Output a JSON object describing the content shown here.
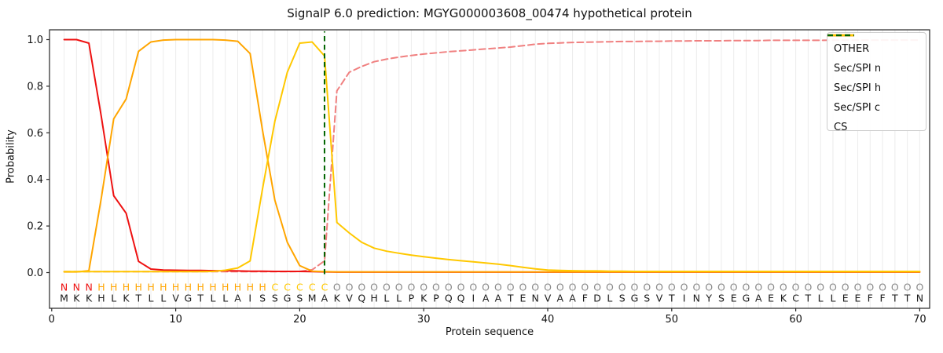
{
  "title": "SignalP 6.0 prediction: MGYG000003608_00474 hypothetical protein",
  "axes": {
    "x_label": "Protein sequence",
    "y_label": "Probability",
    "x_ticks": [
      0,
      10,
      20,
      30,
      40,
      50,
      60,
      70
    ],
    "y_ticks": [
      "0.0",
      "0.2",
      "0.4",
      "0.6",
      "0.8",
      "1.0"
    ]
  },
  "legend": {
    "items": [
      {
        "label": "OTHER",
        "color": "#f08080",
        "dash": true
      },
      {
        "label": "Sec/SPI n",
        "color": "#ee1111",
        "dash": false
      },
      {
        "label": "Sec/SPI h",
        "color": "#ffa500",
        "dash": false
      },
      {
        "label": "Sec/SPI c",
        "color": "#ffc800",
        "dash": false
      },
      {
        "label": "CS",
        "color": "#006400",
        "dash": true
      }
    ]
  },
  "chart_data": {
    "type": "line",
    "title": "SignalP 6.0 prediction: MGYG000003608_00474 hypothetical protein",
    "xlabel": "Protein sequence",
    "ylabel": "Probability",
    "xlim": [
      -0.2,
      70.8
    ],
    "ylim": [
      -0.15,
      1.04
    ],
    "grid": "vertical-per-residue",
    "legend_position": "upper right",
    "x_start": 1,
    "sequence": "MKKHLKTLLVGTLLAISSGSMAKVQHLLPKPQQIAATENVAAFDLSGSVTINYSEGAEKCTLLEEFFTTN",
    "region_labels": "NNNHHHHHHHHHHHHHHCCCCCOOOOOOOOOOOOOOOOOOOOOOOOOOOOOOOOOOOOOOOOOOOOOOOO",
    "region_colors": {
      "N": "#ee1111",
      "H": "#ffa500",
      "C": "#ffc800",
      "O": "#8a8a8a"
    },
    "sequence_color": "#1a1a1a",
    "cs_line": {
      "name": "CS",
      "x": 22,
      "color": "#006400",
      "style": "dashed"
    },
    "series": [
      {
        "name": "OTHER",
        "color": "#f08080",
        "style": "dashed",
        "values": [
          0.004,
          0.004,
          0.004,
          0.004,
          0.004,
          0.004,
          0.004,
          0.004,
          0.004,
          0.004,
          0.004,
          0.004,
          0.004,
          0.004,
          0.004,
          0.004,
          0.004,
          0.004,
          0.004,
          0.005,
          0.012,
          0.05,
          0.78,
          0.86,
          0.885,
          0.905,
          0.916,
          0.925,
          0.932,
          0.938,
          0.943,
          0.948,
          0.952,
          0.956,
          0.96,
          0.964,
          0.968,
          0.974,
          0.98,
          0.984,
          0.986,
          0.988,
          0.989,
          0.99,
          0.991,
          0.992,
          0.992,
          0.993,
          0.993,
          0.994,
          0.994,
          0.995,
          0.995,
          0.995,
          0.996,
          0.996,
          0.996,
          0.997,
          0.997,
          0.997,
          0.997,
          0.997,
          0.998,
          0.998,
          0.998,
          0.998,
          0.998,
          0.998,
          0.998,
          0.998
        ]
      },
      {
        "name": "Sec/SPI n",
        "color": "#ee1111",
        "style": "solid",
        "values": [
          1.0,
          1.0,
          0.985,
          0.67,
          0.33,
          0.255,
          0.048,
          0.015,
          0.011,
          0.01,
          0.009,
          0.009,
          0.008,
          0.008,
          0.007,
          0.006,
          0.006,
          0.005,
          0.005,
          0.005,
          0.004,
          0.003,
          0.002,
          0.002,
          0.002,
          0.002,
          0.002,
          0.002,
          0.002,
          0.002,
          0.002,
          0.002,
          0.002,
          0.002,
          0.002,
          0.002,
          0.002,
          0.002,
          0.002,
          0.002,
          0.002,
          0.002,
          0.002,
          0.002,
          0.002,
          0.002,
          0.002,
          0.002,
          0.002,
          0.002,
          0.002,
          0.002,
          0.002,
          0.002,
          0.002,
          0.002,
          0.002,
          0.002,
          0.002,
          0.002,
          0.002,
          0.002,
          0.002,
          0.002,
          0.002,
          0.002,
          0.002,
          0.002,
          0.002,
          0.002
        ]
      },
      {
        "name": "Sec/SPI h",
        "color": "#ffa500",
        "style": "solid",
        "values": [
          0.003,
          0.003,
          0.008,
          0.32,
          0.66,
          0.745,
          0.95,
          0.99,
          0.998,
          1.0,
          1.0,
          1.0,
          1.0,
          0.998,
          0.993,
          0.94,
          0.61,
          0.31,
          0.13,
          0.03,
          0.006,
          0.004,
          0.003,
          0.003,
          0.003,
          0.003,
          0.003,
          0.003,
          0.003,
          0.003,
          0.003,
          0.003,
          0.003,
          0.003,
          0.003,
          0.003,
          0.003,
          0.003,
          0.003,
          0.003,
          0.003,
          0.003,
          0.003,
          0.003,
          0.003,
          0.003,
          0.003,
          0.003,
          0.003,
          0.003,
          0.003,
          0.003,
          0.003,
          0.003,
          0.003,
          0.003,
          0.003,
          0.003,
          0.003,
          0.003,
          0.003,
          0.003,
          0.003,
          0.003,
          0.003,
          0.003,
          0.003,
          0.003,
          0.003,
          0.003
        ]
      },
      {
        "name": "Sec/SPI c",
        "color": "#ffc800",
        "style": "solid",
        "values": [
          0.004,
          0.004,
          0.004,
          0.004,
          0.004,
          0.004,
          0.004,
          0.004,
          0.004,
          0.004,
          0.004,
          0.004,
          0.005,
          0.01,
          0.02,
          0.05,
          0.36,
          0.65,
          0.86,
          0.985,
          0.99,
          0.93,
          0.215,
          0.17,
          0.13,
          0.105,
          0.092,
          0.083,
          0.075,
          0.068,
          0.062,
          0.056,
          0.051,
          0.046,
          0.041,
          0.036,
          0.03,
          0.023,
          0.016,
          0.011,
          0.009,
          0.008,
          0.007,
          0.007,
          0.006,
          0.006,
          0.005,
          0.005,
          0.005,
          0.005,
          0.005,
          0.005,
          0.005,
          0.005,
          0.005,
          0.005,
          0.005,
          0.005,
          0.005,
          0.005,
          0.005,
          0.005,
          0.005,
          0.005,
          0.005,
          0.005,
          0.005,
          0.005,
          0.005,
          0.005
        ]
      }
    ]
  }
}
